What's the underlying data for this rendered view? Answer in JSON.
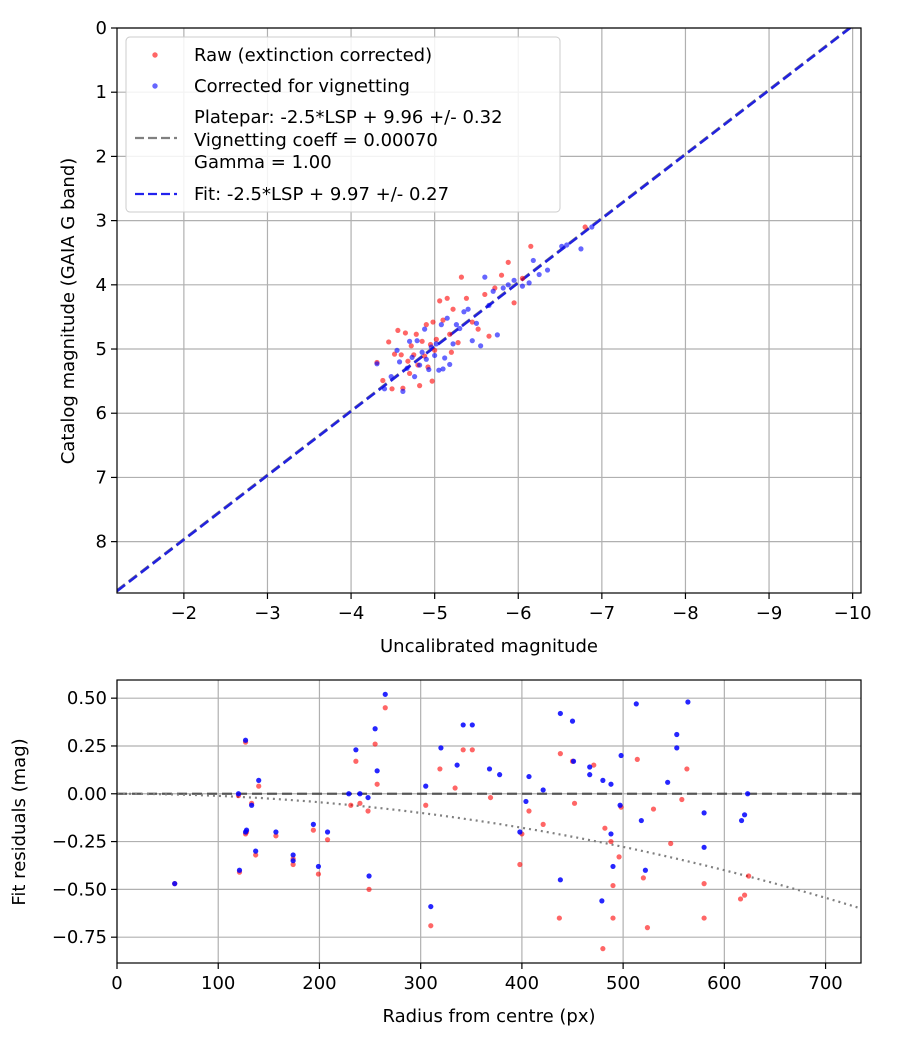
{
  "chart_data": [
    {
      "type": "scatter",
      "xlabel": "Uncalibrated magnitude",
      "ylabel": "Catalog magnitude (GAIA G band)",
      "xlim": [
        -1.2,
        -10.1
      ],
      "ylim": [
        8.8,
        0.0
      ],
      "xticks": [
        -2,
        -3,
        -4,
        -5,
        -6,
        -7,
        -8,
        -9,
        -10
      ],
      "xtick_labels": [
        "−2",
        "−3",
        "−4",
        "−5",
        "−6",
        "−7",
        "−8",
        "−9",
        "−10"
      ],
      "yticks": [
        0,
        1,
        2,
        3,
        4,
        5,
        6,
        7,
        8
      ],
      "ytick_labels": [
        "0",
        "1",
        "2",
        "3",
        "4",
        "5",
        "6",
        "7",
        "8"
      ],
      "grid": true,
      "legend_position": "top-left",
      "legend": [
        {
          "label": "Raw (extinction corrected)",
          "marker": "dot",
          "color": "#ff0000"
        },
        {
          "label": "Corrected for vignetting",
          "marker": "dot",
          "color": "#0000ff"
        },
        {
          "label_lines": [
            "Platepar: -2.5*LSP + 9.96 +/- 0.32",
            "Vignetting coeff = 0.00070",
            "Gamma = 1.00"
          ],
          "marker": "dash",
          "color": "#808080"
        },
        {
          "label": "Fit: -2.5*LSP + 9.97 +/- 0.27",
          "marker": "dash",
          "color": "#2222ee"
        }
      ],
      "lines": [
        {
          "name": "Platepar",
          "slope": 1,
          "intercept": 9.96,
          "color": "#808080"
        },
        {
          "name": "Fit",
          "slope": 1,
          "intercept": 9.97,
          "color": "#2222dd"
        }
      ],
      "series": [
        {
          "name": "Raw (extinction corrected)",
          "color": "#ff0000",
          "points": [
            [
              -4.31,
              5.21
            ],
            [
              -4.38,
              5.49
            ],
            [
              -4.45,
              4.89
            ],
            [
              -4.52,
              5.08
            ],
            [
              -4.56,
              4.71
            ],
            [
              -4.6,
              5.09
            ],
            [
              -4.62,
              5.61
            ],
            [
              -4.65,
              4.75
            ],
            [
              -4.68,
              5.19
            ],
            [
              -4.7,
              5.38
            ],
            [
              -4.72,
              4.95
            ],
            [
              -4.75,
              5.09
            ],
            [
              -4.78,
              4.77
            ],
            [
              -4.8,
              5.25
            ],
            [
              -4.82,
              5.57
            ],
            [
              -4.85,
              4.88
            ],
            [
              -4.88,
              5.11
            ],
            [
              -4.9,
              4.62
            ],
            [
              -4.92,
              5.28
            ],
            [
              -4.95,
              4.93
            ],
            [
              -4.98,
              4.58
            ],
            [
              -5.0,
              5.02
            ],
            [
              -5.02,
              4.85
            ],
            [
              -5.06,
              4.25
            ],
            [
              -5.1,
              4.55
            ],
            [
              -5.15,
              4.21
            ],
            [
              -5.18,
              4.77
            ],
            [
              -5.22,
              4.38
            ],
            [
              -5.28,
              4.9
            ],
            [
              -5.32,
              3.88
            ],
            [
              -5.38,
              4.21
            ],
            [
              -5.45,
              4.58
            ],
            [
              -5.52,
              4.69
            ],
            [
              -5.6,
              4.15
            ],
            [
              -5.65,
              4.8
            ],
            [
              -5.72,
              4.05
            ],
            [
              -5.8,
              3.85
            ],
            [
              -5.88,
              3.65
            ],
            [
              -5.95,
              4.28
            ],
            [
              -6.05,
              3.9
            ],
            [
              -6.15,
              3.4
            ],
            [
              -6.8,
              3.1
            ],
            [
              -4.97,
              5.5
            ],
            [
              -4.49,
              5.62
            ],
            [
              -5.2,
              5.05
            ]
          ]
        },
        {
          "name": "Corrected for vignetting",
          "color": "#0000ff",
          "points": [
            [
              -4.31,
              5.23
            ],
            [
              -4.4,
              5.62
            ],
            [
              -4.48,
              5.43
            ],
            [
              -4.55,
              5.02
            ],
            [
              -4.62,
              5.66
            ],
            [
              -4.67,
              5.3
            ],
            [
              -4.7,
              4.88
            ],
            [
              -4.73,
              5.13
            ],
            [
              -4.76,
              5.43
            ],
            [
              -4.79,
              4.87
            ],
            [
              -4.82,
              5.25
            ],
            [
              -4.85,
              5.05
            ],
            [
              -4.88,
              4.69
            ],
            [
              -4.9,
              5.16
            ],
            [
              -4.93,
              5.32
            ],
            [
              -4.96,
              4.97
            ],
            [
              -5.0,
              5.1
            ],
            [
              -5.02,
              4.92
            ],
            [
              -5.05,
              5.33
            ],
            [
              -5.08,
              4.62
            ],
            [
              -5.12,
              5.14
            ],
            [
              -5.15,
              4.52
            ],
            [
              -5.18,
              5.24
            ],
            [
              -5.22,
              4.92
            ],
            [
              -5.26,
              4.62
            ],
            [
              -5.3,
              4.68
            ],
            [
              -5.35,
              4.42
            ],
            [
              -5.4,
              4.38
            ],
            [
              -5.45,
              4.87
            ],
            [
              -5.5,
              4.6
            ],
            [
              -5.55,
              4.95
            ],
            [
              -5.6,
              3.88
            ],
            [
              -5.65,
              4.32
            ],
            [
              -5.7,
              4.1
            ],
            [
              -5.75,
              4.78
            ],
            [
              -5.82,
              4.05
            ],
            [
              -5.88,
              4.0
            ],
            [
              -5.95,
              3.93
            ],
            [
              -6.05,
              4.02
            ],
            [
              -6.13,
              3.97
            ],
            [
              -6.18,
              3.62
            ],
            [
              -6.25,
              3.84
            ],
            [
              -6.35,
              3.77
            ],
            [
              -6.52,
              3.4
            ],
            [
              -6.58,
              3.38
            ],
            [
              -6.75,
              3.44
            ],
            [
              -6.88,
              3.1
            ],
            [
              -5.1,
              5.31
            ],
            [
              -4.58,
              5.2
            ]
          ]
        }
      ]
    },
    {
      "type": "scatter",
      "xlabel": "Radius from centre (px)",
      "ylabel": "Fit residuals (mag)",
      "xlim": [
        0,
        735
      ],
      "ylim": [
        -0.885,
        0.595
      ],
      "xticks": [
        0,
        100,
        200,
        300,
        400,
        500,
        600,
        700
      ],
      "xtick_labels": [
        "0",
        "100",
        "200",
        "300",
        "400",
        "500",
        "600",
        "700"
      ],
      "yticks": [
        0.5,
        0.25,
        0.0,
        -0.25,
        -0.5,
        -0.75
      ],
      "ytick_labels": [
        "0.50",
        "0.25",
        "0.00",
        "−0.25",
        "−0.50",
        "−0.75"
      ],
      "grid": true,
      "lines": [
        {
          "name": "zero line",
          "style": "dashed",
          "color": "#444444",
          "y": 0.0
        },
        {
          "name": "vignetting model",
          "style": "dotted",
          "color": "#808080",
          "curve": "quadratic-decline",
          "y_at_end": -0.6
        }
      ],
      "series": [
        {
          "name": "Raw (extinction corrected)",
          "color": "#ff0000",
          "points": [
            [
              57,
              -0.47
            ],
            [
              120,
              -0.01
            ],
            [
              121,
              -0.41
            ],
            [
              127,
              0.27
            ],
            [
              127,
              -0.21
            ],
            [
              128,
              -0.2
            ],
            [
              133,
              -0.05
            ],
            [
              137,
              -0.32
            ],
            [
              140,
              0.04
            ],
            [
              157,
              -0.22
            ],
            [
              174,
              -0.34
            ],
            [
              174,
              -0.37
            ],
            [
              194,
              -0.19
            ],
            [
              199,
              -0.42
            ],
            [
              208,
              -0.24
            ],
            [
              231,
              -0.06
            ],
            [
              236,
              0.17
            ],
            [
              240,
              -0.05
            ],
            [
              248,
              -0.09
            ],
            [
              249,
              -0.5
            ],
            [
              255,
              0.26
            ],
            [
              257,
              0.05
            ],
            [
              265,
              0.45
            ],
            [
              305,
              -0.06
            ],
            [
              310,
              -0.69
            ],
            [
              319,
              0.13
            ],
            [
              334,
              0.03
            ],
            [
              342,
              0.23
            ],
            [
              351,
              0.23
            ],
            [
              369,
              -0.02
            ],
            [
              398,
              -0.37
            ],
            [
              400,
              -0.21
            ],
            [
              407,
              -0.09
            ],
            [
              421,
              -0.16
            ],
            [
              437,
              -0.65
            ],
            [
              438,
              0.21
            ],
            [
              450,
              0.17
            ],
            [
              452,
              -0.05
            ],
            [
              471,
              0.15
            ],
            [
              480,
              -0.81
            ],
            [
              482,
              -0.18
            ],
            [
              488,
              -0.25
            ],
            [
              490,
              -0.48
            ],
            [
              490,
              -0.65
            ],
            [
              496,
              -0.33
            ],
            [
              498,
              -0.07
            ],
            [
              514,
              0.18
            ],
            [
              520,
              -0.44
            ],
            [
              524,
              -0.7
            ],
            [
              547,
              -0.26
            ],
            [
              558,
              -0.03
            ],
            [
              563,
              0.13
            ],
            [
              580,
              -0.47
            ],
            [
              580,
              -0.65
            ],
            [
              616,
              -0.55
            ],
            [
              620,
              -0.53
            ],
            [
              624,
              -0.43
            ],
            [
              530,
              -0.08
            ]
          ]
        },
        {
          "name": "Corrected for vignetting",
          "color": "#0000ff",
          "points": [
            [
              57,
              -0.47
            ],
            [
              120,
              0.0
            ],
            [
              121,
              -0.4
            ],
            [
              127,
              0.28
            ],
            [
              127,
              -0.2
            ],
            [
              128,
              -0.19
            ],
            [
              133,
              -0.06
            ],
            [
              137,
              -0.3
            ],
            [
              140,
              0.07
            ],
            [
              157,
              -0.2
            ],
            [
              174,
              -0.32
            ],
            [
              174,
              -0.35
            ],
            [
              194,
              -0.16
            ],
            [
              199,
              -0.38
            ],
            [
              208,
              -0.2
            ],
            [
              229,
              0.0
            ],
            [
              236,
              0.23
            ],
            [
              240,
              0.0
            ],
            [
              248,
              -0.02
            ],
            [
              249,
              -0.43
            ],
            [
              255,
              0.34
            ],
            [
              257,
              0.12
            ],
            [
              265,
              0.52
            ],
            [
              305,
              0.04
            ],
            [
              310,
              -0.59
            ],
            [
              320,
              0.24
            ],
            [
              336,
              0.15
            ],
            [
              342,
              0.36
            ],
            [
              351,
              0.36
            ],
            [
              368,
              0.13
            ],
            [
              378,
              0.1
            ],
            [
              398,
              -0.2
            ],
            [
              404,
              -0.04
            ],
            [
              407,
              0.09
            ],
            [
              421,
              0.02
            ],
            [
              438,
              -0.45
            ],
            [
              438,
              0.42
            ],
            [
              450,
              0.38
            ],
            [
              451,
              0.17
            ],
            [
              467,
              0.14
            ],
            [
              467,
              0.1
            ],
            [
              479,
              -0.56
            ],
            [
              480,
              0.07
            ],
            [
              488,
              0.05
            ],
            [
              488,
              -0.21
            ],
            [
              490,
              -0.38
            ],
            [
              497,
              -0.06
            ],
            [
              498,
              0.2
            ],
            [
              513,
              0.47
            ],
            [
              518,
              -0.14
            ],
            [
              522,
              -0.4
            ],
            [
              544,
              0.06
            ],
            [
              553,
              0.31
            ],
            [
              553,
              0.24
            ],
            [
              564,
              0.48
            ],
            [
              580,
              -0.1
            ],
            [
              580,
              -0.28
            ],
            [
              617,
              -0.14
            ],
            [
              620,
              -0.11
            ],
            [
              623,
              0.0
            ]
          ]
        }
      ]
    }
  ]
}
